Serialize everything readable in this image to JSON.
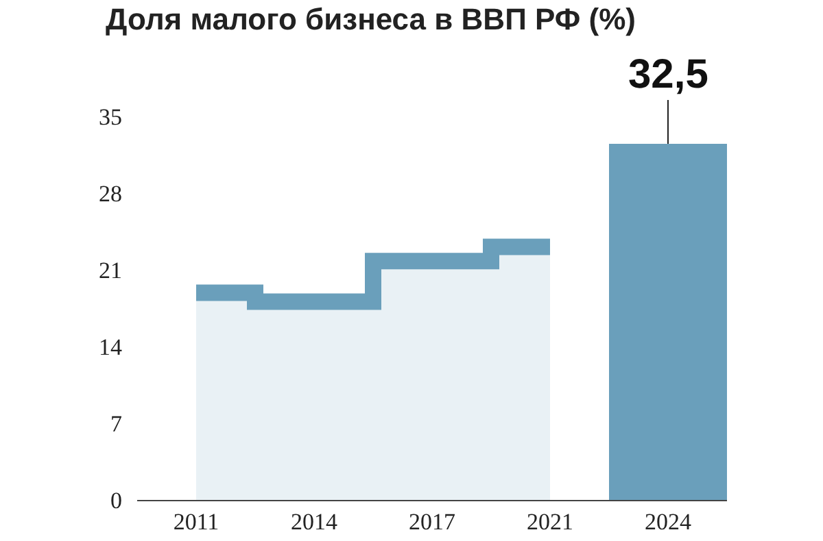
{
  "chart_data": {
    "type": "bar",
    "title": "Доля малого бизнеса в ВВП РФ (%)",
    "categories": [
      "2011",
      "2014",
      "2017",
      "2021",
      "2024"
    ],
    "series": [
      {
        "type": "step",
        "color": "#6a9fbb",
        "values": [
          18.9,
          18.1,
          21.8,
          23.1,
          null
        ]
      },
      {
        "color": "#6a9fbb",
        "values": [
          null,
          null,
          null,
          null,
          32.5
        ],
        "value_labels": [
          null,
          null,
          null,
          null,
          "32,5"
        ]
      }
    ],
    "ylim": [
      0,
      35
    ],
    "yticks": [
      0,
      7,
      14,
      21,
      28,
      35
    ],
    "grid": false,
    "legend": false
  }
}
